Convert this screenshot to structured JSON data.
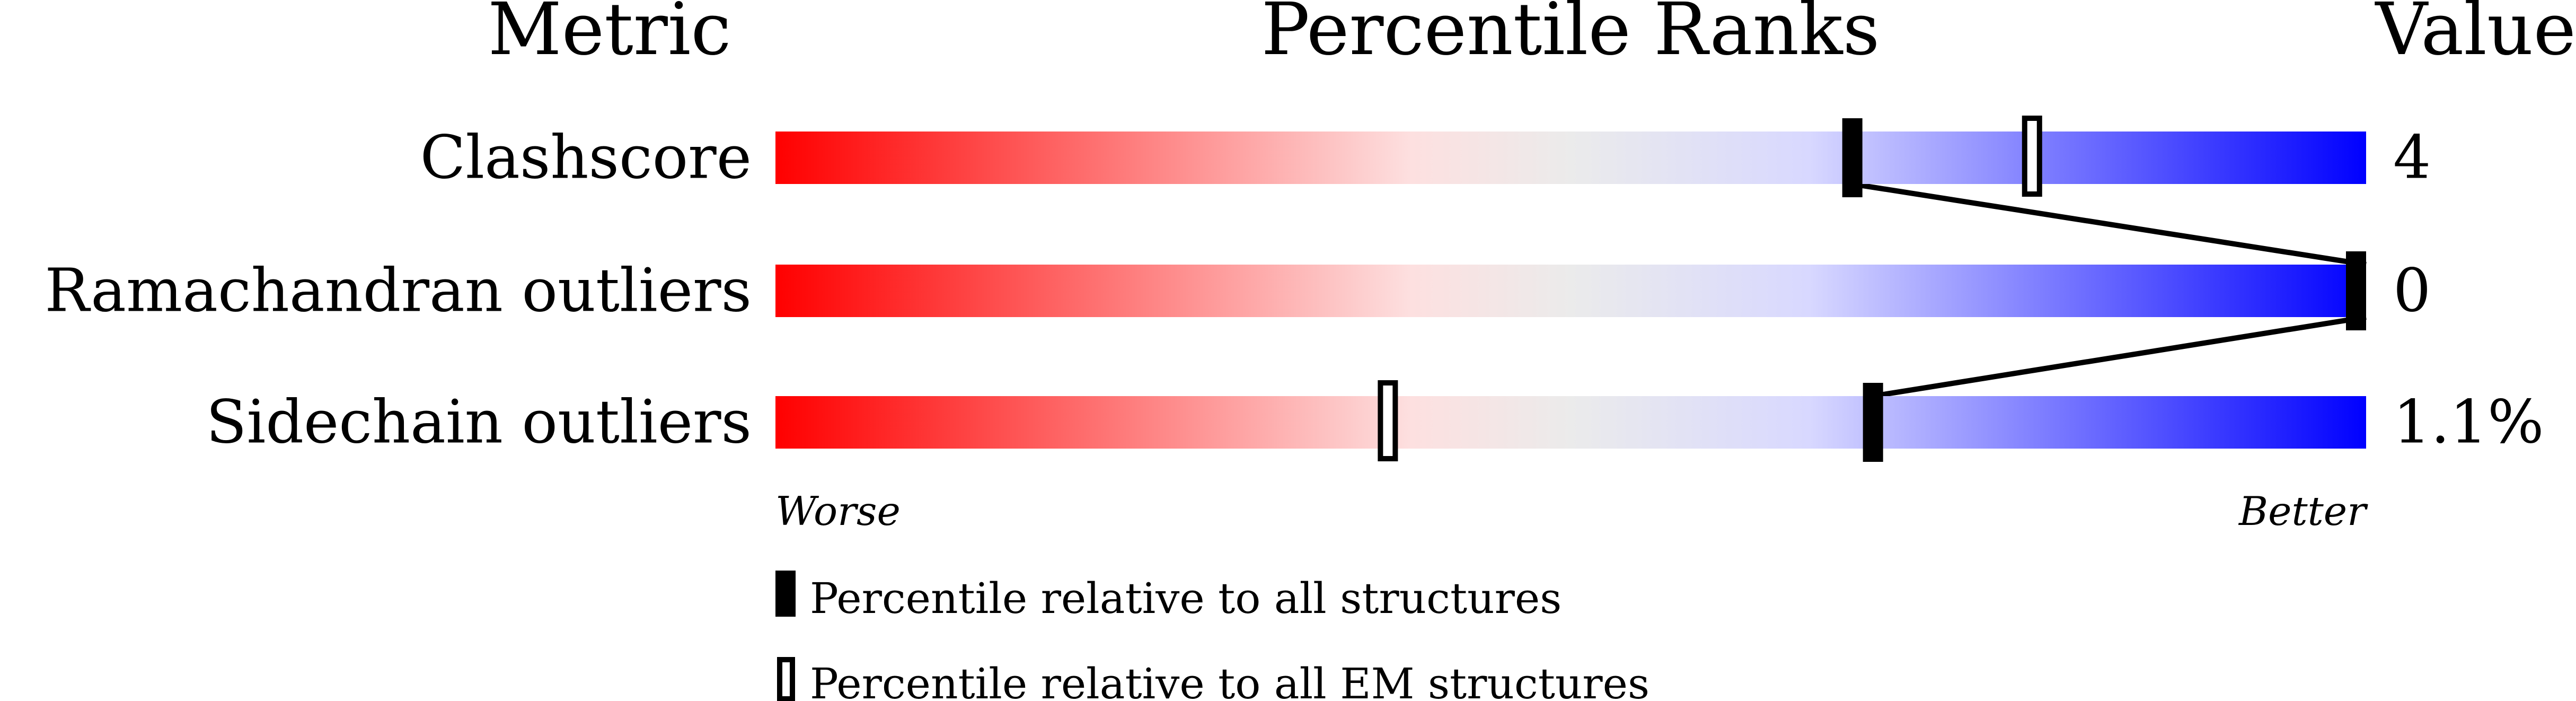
{
  "chart_data": {
    "type": "bar",
    "headers": {
      "metric": "Metric",
      "ranks": "Percentile Ranks",
      "value": "Value"
    },
    "xlim": [
      0,
      100
    ],
    "rows": [
      {
        "metric": "Clashscore",
        "value": "4",
        "percentile_all": 67.7,
        "percentile_em": 79
      },
      {
        "metric": "Ramachandran outliers",
        "value": "0",
        "percentile_all": 100,
        "percentile_em": null
      },
      {
        "metric": "Sidechain outliers",
        "value": "1.1%",
        "percentile_all": 69,
        "percentile_em": 38.5
      }
    ],
    "axis_labels": {
      "worse": "Worse",
      "better": "Better"
    },
    "legend": [
      {
        "marker": "filled",
        "label": "Percentile relative to all structures"
      },
      {
        "marker": "outline",
        "label": "Percentile relative to all EM structures"
      }
    ],
    "gradient_colors": [
      "#ff0000",
      "#fde0e0",
      "#ebebeb",
      "#d8d8ff",
      "#0000ff"
    ]
  }
}
